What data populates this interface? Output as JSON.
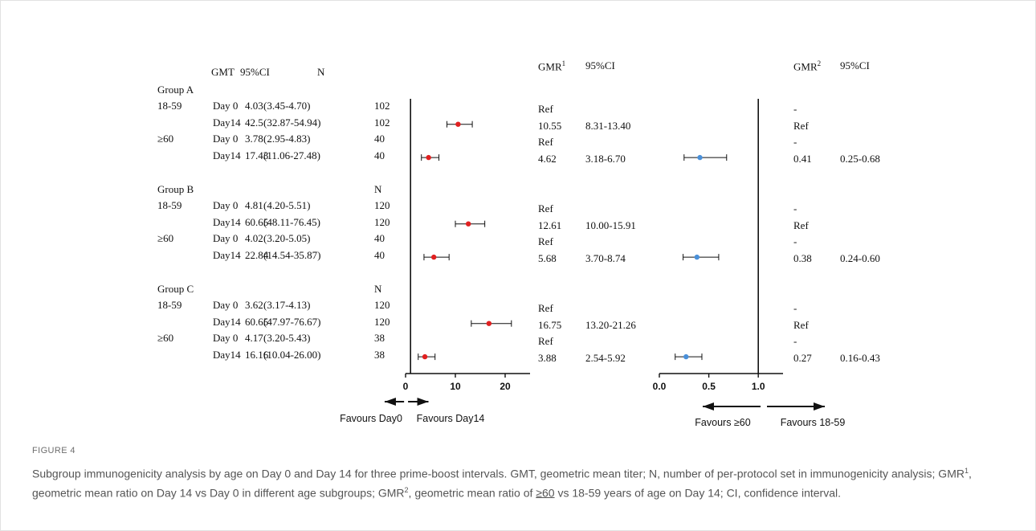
{
  "figure": {
    "label": "FIGURE 4",
    "caption_parts": [
      {
        "t": "Subgroup immunogenicity analysis by age on Day 0 and Day 14 for three prime-boost intervals. GMT, geometric mean titer; N, number of per-protocol set in immunogenicity analysis; GMR"
      },
      {
        "t": "1",
        "sup": true
      },
      {
        "t": ", geometric mean ratio on Day 14 vs Day 0 in different age subgroups; GMR"
      },
      {
        "t": "2",
        "sup": true
      },
      {
        "t": ", geometric mean ratio of "
      },
      {
        "t": "≥60",
        "u": true
      },
      {
        "t": " vs 18-59 years of age on Day 14; CI, confidence interval."
      }
    ]
  },
  "headers": {
    "gmt": "GMT",
    "ci1": "95%CI",
    "n": "N",
    "gmr1": "GMR",
    "gmr1_sup": "1",
    "ci2": "95%CI",
    "gmr2": "GMR",
    "gmr2_sup": "2",
    "ci3": "95%CI"
  },
  "groups": [
    {
      "name": "Group A",
      "n_label": "",
      "rows": [
        {
          "age": "18-59",
          "day": "Day 0",
          "gmt": "4.03",
          "ci": "(3.45-4.70)",
          "n": "102",
          "gmr1": "Ref",
          "ci_gmr1": "",
          "gmr2": "-",
          "ci_gmr2": ""
        },
        {
          "age": "",
          "day": "Day14",
          "gmt": "42.5",
          "ci": "(32.87-54.94)",
          "n": "102",
          "gmr1": "10.55",
          "ci_gmr1": "8.31-13.40",
          "gmr2": "Ref",
          "ci_gmr2": ""
        },
        {
          "age": "≥60",
          "day": "Day 0",
          "gmt": "3.78",
          "ci": "(2.95-4.83)",
          "n": "40",
          "gmr1": "Ref",
          "ci_gmr1": "",
          "gmr2": "-",
          "ci_gmr2": ""
        },
        {
          "age": "",
          "day": "Day14",
          "gmt": "17.43",
          "ci": "(11.06-27.48)",
          "n": "40",
          "gmr1": "4.62",
          "ci_gmr1": "3.18-6.70",
          "gmr2": "0.41",
          "ci_gmr2": "0.25-0.68"
        }
      ]
    },
    {
      "name": "Group B",
      "n_label": "N",
      "rows": [
        {
          "age": "18-59",
          "day": "Day 0",
          "gmt": "4.81",
          "ci": "(4.20-5.51)",
          "n": "120",
          "gmr1": "Ref",
          "ci_gmr1": "",
          "gmr2": "-",
          "ci_gmr2": ""
        },
        {
          "age": "",
          "day": "Day14",
          "gmt": "60.65",
          "ci": "(48.11-76.45)",
          "n": "120",
          "gmr1": "12.61",
          "ci_gmr1": "10.00-15.91",
          "gmr2": "Ref",
          "ci_gmr2": ""
        },
        {
          "age": "≥60",
          "day": "Day 0",
          "gmt": "4.02",
          "ci": "(3.20-5.05)",
          "n": "40",
          "gmr1": "Ref",
          "ci_gmr1": "",
          "gmr2": "-",
          "ci_gmr2": ""
        },
        {
          "age": "",
          "day": "Day14",
          "gmt": "22.84",
          "ci": "(14.54-35.87)",
          "n": "40",
          "gmr1": "5.68",
          "ci_gmr1": "3.70-8.74",
          "gmr2": "0.38",
          "ci_gmr2": "0.24-0.60"
        }
      ]
    },
    {
      "name": "Group C",
      "n_label": "N",
      "rows": [
        {
          "age": "18-59",
          "day": "Day 0",
          "gmt": "3.62",
          "ci": "(3.17-4.13)",
          "n": "120",
          "gmr1": "Ref",
          "ci_gmr1": "",
          "gmr2": "-",
          "ci_gmr2": ""
        },
        {
          "age": "",
          "day": "Day14",
          "gmt": "60.65",
          "ci": "(47.97-76.67)",
          "n": "120",
          "gmr1": "16.75",
          "ci_gmr1": "13.20-21.26",
          "gmr2": "Ref",
          "ci_gmr2": ""
        },
        {
          "age": "≥60",
          "day": "Day 0",
          "gmt": "4.17",
          "ci": "(3.20-5.43)",
          "n": "38",
          "gmr1": "Ref",
          "ci_gmr1": "",
          "gmr2": "-",
          "ci_gmr2": ""
        },
        {
          "age": "",
          "day": "Day14",
          "gmt": "16.16",
          "ci": "(10.04-26.00)",
          "n": "38",
          "gmr1": "3.88",
          "ci_gmr1": "2.54-5.92",
          "gmr2": "0.27",
          "ci_gmr2": "0.16-0.43"
        }
      ]
    }
  ],
  "chart_data": [
    {
      "type": "scatter",
      "title": "",
      "xlim": [
        0,
        25
      ],
      "xticks": [
        0,
        10,
        20
      ],
      "ref_line": 1,
      "color": "#e02020",
      "favours_left": "Favours Day0",
      "favours_right": "Favours Day14",
      "points": [
        {
          "group": "Group A",
          "age": "18-59",
          "value": 10.55,
          "lo": 8.31,
          "hi": 13.4
        },
        {
          "group": "Group A",
          "age": "≥60",
          "value": 4.62,
          "lo": 3.18,
          "hi": 6.7
        },
        {
          "group": "Group B",
          "age": "18-59",
          "value": 12.61,
          "lo": 10.0,
          "hi": 15.91
        },
        {
          "group": "Group B",
          "age": "≥60",
          "value": 5.68,
          "lo": 3.7,
          "hi": 8.74
        },
        {
          "group": "Group C",
          "age": "18-59",
          "value": 16.75,
          "lo": 13.2,
          "hi": 21.26
        },
        {
          "group": "Group C",
          "age": "≥60",
          "value": 3.88,
          "lo": 2.54,
          "hi": 5.92
        }
      ]
    },
    {
      "type": "scatter",
      "title": "",
      "xlim": [
        0,
        1.25
      ],
      "xticks": [
        0.0,
        0.5,
        1.0
      ],
      "xtick_labels": [
        "0.0",
        "0.5",
        "1.0"
      ],
      "ref_line": 1,
      "color": "#4a90d9",
      "favours_left": "Favours ≥60",
      "favours_right": "Favours 18-59",
      "points": [
        {
          "group": "Group A",
          "value": 0.41,
          "lo": 0.25,
          "hi": 0.68
        },
        {
          "group": "Group B",
          "value": 0.38,
          "lo": 0.24,
          "hi": 0.6
        },
        {
          "group": "Group C",
          "value": 0.27,
          "lo": 0.16,
          "hi": 0.43
        }
      ]
    }
  ]
}
